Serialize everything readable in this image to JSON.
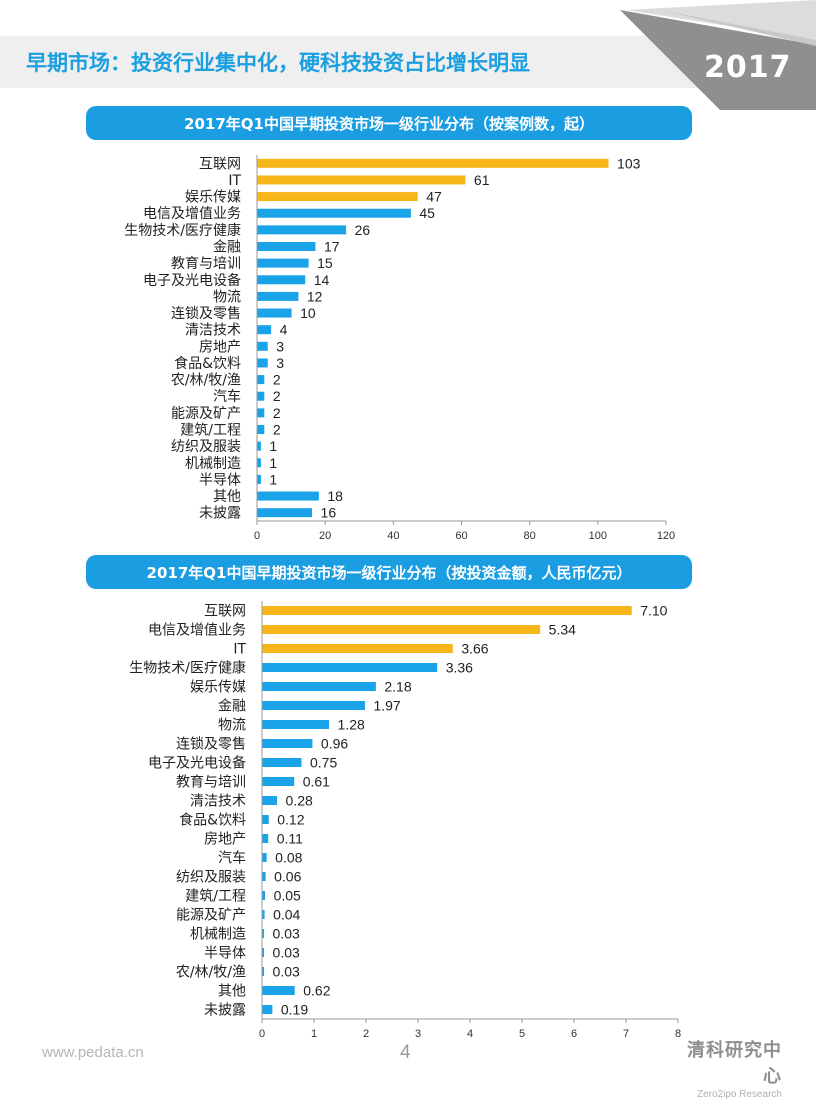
{
  "header": {
    "title": "早期市场：投资行业集中化，硬科技投资占比增长明显",
    "year_badge": "2017"
  },
  "colors": {
    "highlight": "#f6b619",
    "normal": "#1aa3e8",
    "banner": "#1b9de2",
    "title": "#1a9fe0"
  },
  "chart_data": [
    {
      "type": "bar",
      "orientation": "horizontal",
      "title": "2017年Q1中国早期投资市场一级行业分布（按案例数，起）",
      "categories": [
        "互联网",
        "IT",
        "娱乐传媒",
        "电信及增值业务",
        "生物技术/医疗健康",
        "金融",
        "教育与培训",
        "电子及光电设备",
        "物流",
        "连锁及零售",
        "清洁技术",
        "房地产",
        "食品&饮料",
        "农/林/牧/渔",
        "汽车",
        "能源及矿产",
        "建筑/工程",
        "纺织及服装",
        "机械制造",
        "半导体",
        "其他",
        "未披露"
      ],
      "values": [
        103,
        61,
        47,
        45,
        26,
        17,
        15,
        14,
        12,
        10,
        4,
        3,
        3,
        2,
        2,
        2,
        2,
        1,
        1,
        1,
        18,
        16
      ],
      "value_labels": [
        "103",
        "61",
        "47",
        "45",
        "26",
        "17",
        "15",
        "14",
        "12",
        "10",
        "4",
        "3",
        "3",
        "2",
        "2",
        "2",
        "2",
        "1",
        "1",
        "1",
        "18",
        "16"
      ],
      "highlighted": [
        "互联网",
        "IT",
        "娱乐传媒"
      ],
      "xlim": [
        0,
        120
      ],
      "xticks": [
        "0",
        "20",
        "40",
        "60",
        "80",
        "100",
        "120"
      ]
    },
    {
      "type": "bar",
      "orientation": "horizontal",
      "title": "2017年Q1中国早期投资市场一级行业分布（按投资金额，人民币亿元）",
      "categories": [
        "互联网",
        "电信及增值业务",
        "IT",
        "生物技术/医疗健康",
        "娱乐传媒",
        "金融",
        "物流",
        "连锁及零售",
        "电子及光电设备",
        "教育与培训",
        "清洁技术",
        "食品&饮料",
        "房地产",
        "汽车",
        "纺织及服装",
        "建筑/工程",
        "能源及矿产",
        "机械制造",
        "半导体",
        "农/林/牧/渔",
        "其他",
        "未披露"
      ],
      "values": [
        7.1,
        5.34,
        3.66,
        3.36,
        2.18,
        1.97,
        1.28,
        0.96,
        0.75,
        0.61,
        0.28,
        0.12,
        0.11,
        0.08,
        0.06,
        0.05,
        0.04,
        0.03,
        0.03,
        0.03,
        0.62,
        0.19
      ],
      "value_labels": [
        "7.10",
        "5.34",
        "3.66",
        "3.36",
        "2.18",
        "1.97",
        "1.28",
        "0.96",
        "0.75",
        "0.61",
        "0.28",
        "0.12",
        "0.11",
        "0.08",
        "0.06",
        "0.05",
        "0.04",
        "0.03",
        "0.03",
        "0.03",
        "0.62",
        "0.19"
      ],
      "highlighted": [
        "互联网",
        "电信及增值业务",
        "IT"
      ],
      "xlim": [
        0,
        8
      ],
      "xticks": [
        "0",
        "1",
        "2",
        "3",
        "4",
        "5",
        "6",
        "7",
        "8"
      ]
    }
  ],
  "footer": {
    "url": "www.pedata.cn",
    "page_number": "4",
    "brand_name": "清科研究中心",
    "brand_sub": "Zero2ipo Research"
  }
}
